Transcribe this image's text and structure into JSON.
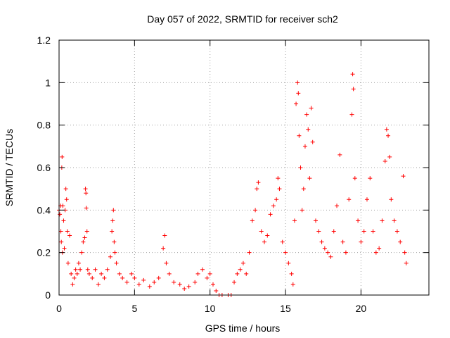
{
  "chart_data": {
    "type": "scatter",
    "title": "Day 057 of 2022, SRMTID for receiver sch2",
    "xlabel": "GPS time / hours",
    "ylabel": "SRMTID / TECUs",
    "xlim": [
      0,
      24.5
    ],
    "ylim": [
      0,
      1.2
    ],
    "xticks": [
      0,
      5,
      10,
      15,
      20
    ],
    "xtick_labels": [
      "0",
      "5",
      "10",
      "15",
      "20"
    ],
    "yticks": [
      0,
      0.2,
      0.4,
      0.6,
      0.8,
      1,
      1.2
    ],
    "ytick_labels": [
      "0",
      "0.2",
      "0.4",
      "0.6",
      "0.8",
      "1",
      "1.2"
    ],
    "grid": true,
    "marker": "plus",
    "color": "#ff0000",
    "series": [
      {
        "name": "SRMTID",
        "points": [
          [
            0.0,
            0.4
          ],
          [
            0.05,
            0.38
          ],
          [
            0.1,
            0.42
          ],
          [
            0.12,
            0.3
          ],
          [
            0.15,
            0.25
          ],
          [
            0.18,
            0.6
          ],
          [
            0.2,
            0.65
          ],
          [
            0.22,
            0.2
          ],
          [
            0.25,
            0.42
          ],
          [
            0.3,
            0.35
          ],
          [
            0.35,
            0.22
          ],
          [
            0.4,
            0.4
          ],
          [
            0.45,
            0.5
          ],
          [
            0.5,
            0.45
          ],
          [
            0.55,
            0.3
          ],
          [
            0.6,
            0.15
          ],
          [
            0.7,
            0.28
          ],
          [
            0.8,
            0.1
          ],
          [
            0.9,
            0.05
          ],
          [
            1.0,
            0.08
          ],
          [
            1.1,
            0.12
          ],
          [
            1.2,
            0.1
          ],
          [
            1.3,
            0.15
          ],
          [
            1.4,
            0.12
          ],
          [
            1.5,
            0.2
          ],
          [
            1.6,
            0.25
          ],
          [
            1.7,
            0.27
          ],
          [
            1.75,
            0.5
          ],
          [
            1.78,
            0.48
          ],
          [
            1.8,
            0.41
          ],
          [
            1.85,
            0.3
          ],
          [
            1.9,
            0.12
          ],
          [
            2.0,
            0.1
          ],
          [
            2.2,
            0.08
          ],
          [
            2.4,
            0.12
          ],
          [
            2.6,
            0.05
          ],
          [
            2.8,
            0.1
          ],
          [
            3.0,
            0.08
          ],
          [
            3.2,
            0.12
          ],
          [
            3.4,
            0.18
          ],
          [
            3.5,
            0.3
          ],
          [
            3.55,
            0.35
          ],
          [
            3.6,
            0.4
          ],
          [
            3.65,
            0.25
          ],
          [
            3.7,
            0.2
          ],
          [
            3.8,
            0.15
          ],
          [
            4.0,
            0.1
          ],
          [
            4.2,
            0.08
          ],
          [
            4.5,
            0.06
          ],
          [
            4.8,
            0.1
          ],
          [
            5.0,
            0.08
          ],
          [
            5.3,
            0.05
          ],
          [
            5.6,
            0.07
          ],
          [
            6.0,
            0.04
          ],
          [
            6.3,
            0.06
          ],
          [
            6.6,
            0.08
          ],
          [
            6.9,
            0.22
          ],
          [
            7.0,
            0.28
          ],
          [
            7.1,
            0.15
          ],
          [
            7.3,
            0.1
          ],
          [
            7.6,
            0.06
          ],
          [
            8.0,
            0.05
          ],
          [
            8.3,
            0.03
          ],
          [
            8.6,
            0.04
          ],
          [
            9.0,
            0.06
          ],
          [
            9.2,
            0.1
          ],
          [
            9.5,
            0.12
          ],
          [
            9.8,
            0.08
          ],
          [
            10.0,
            0.1
          ],
          [
            10.2,
            0.05
          ],
          [
            10.4,
            0.02
          ],
          [
            10.6,
            0.0
          ],
          [
            10.8,
            0.0
          ],
          [
            11.2,
            0.0
          ],
          [
            11.4,
            0.0
          ],
          [
            11.6,
            0.06
          ],
          [
            11.8,
            0.1
          ],
          [
            12.0,
            0.12
          ],
          [
            12.2,
            0.15
          ],
          [
            12.4,
            0.1
          ],
          [
            12.6,
            0.2
          ],
          [
            12.8,
            0.35
          ],
          [
            13.0,
            0.4
          ],
          [
            13.1,
            0.5
          ],
          [
            13.2,
            0.53
          ],
          [
            13.4,
            0.3
          ],
          [
            13.6,
            0.25
          ],
          [
            13.8,
            0.28
          ],
          [
            14.0,
            0.38
          ],
          [
            14.2,
            0.42
          ],
          [
            14.4,
            0.45
          ],
          [
            14.5,
            0.55
          ],
          [
            14.6,
            0.5
          ],
          [
            14.8,
            0.25
          ],
          [
            15.0,
            0.2
          ],
          [
            15.2,
            0.15
          ],
          [
            15.4,
            0.1
          ],
          [
            15.5,
            0.05
          ],
          [
            15.6,
            0.35
          ],
          [
            15.7,
            0.9
          ],
          [
            15.8,
            1.0
          ],
          [
            15.85,
            0.95
          ],
          [
            15.9,
            0.75
          ],
          [
            16.0,
            0.6
          ],
          [
            16.1,
            0.4
          ],
          [
            16.2,
            0.5
          ],
          [
            16.3,
            0.7
          ],
          [
            16.4,
            0.85
          ],
          [
            16.5,
            0.78
          ],
          [
            16.6,
            0.55
          ],
          [
            16.7,
            0.88
          ],
          [
            16.8,
            0.72
          ],
          [
            17.0,
            0.35
          ],
          [
            17.2,
            0.3
          ],
          [
            17.4,
            0.25
          ],
          [
            17.6,
            0.22
          ],
          [
            17.8,
            0.2
          ],
          [
            18.0,
            0.18
          ],
          [
            18.2,
            0.3
          ],
          [
            18.4,
            0.42
          ],
          [
            18.6,
            0.66
          ],
          [
            18.8,
            0.25
          ],
          [
            19.0,
            0.2
          ],
          [
            19.2,
            0.45
          ],
          [
            19.4,
            0.85
          ],
          [
            19.45,
            1.04
          ],
          [
            19.5,
            0.97
          ],
          [
            19.6,
            0.55
          ],
          [
            19.8,
            0.35
          ],
          [
            20.0,
            0.25
          ],
          [
            20.2,
            0.3
          ],
          [
            20.4,
            0.45
          ],
          [
            20.6,
            0.55
          ],
          [
            20.8,
            0.3
          ],
          [
            21.0,
            0.2
          ],
          [
            21.2,
            0.22
          ],
          [
            21.4,
            0.35
          ],
          [
            21.6,
            0.63
          ],
          [
            21.7,
            0.78
          ],
          [
            21.8,
            0.75
          ],
          [
            21.9,
            0.65
          ],
          [
            22.0,
            0.45
          ],
          [
            22.2,
            0.35
          ],
          [
            22.4,
            0.3
          ],
          [
            22.6,
            0.25
          ],
          [
            22.8,
            0.56
          ],
          [
            22.9,
            0.2
          ],
          [
            23.0,
            0.15
          ]
        ]
      }
    ]
  }
}
